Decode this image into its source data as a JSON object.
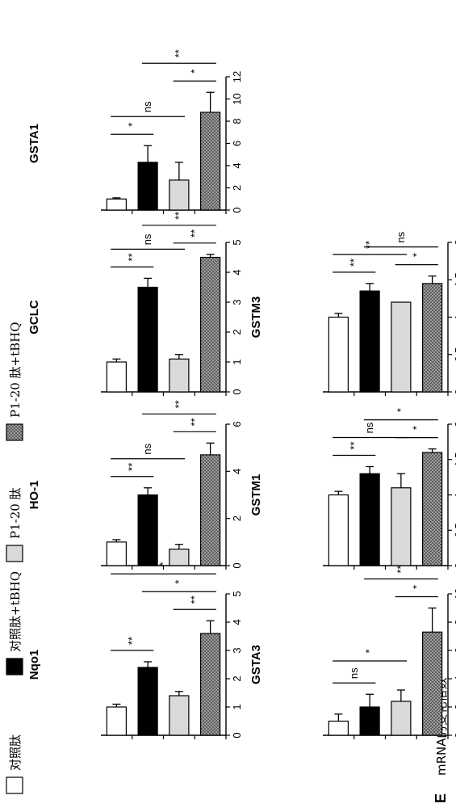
{
  "figure_label": "E",
  "y_axis_label": "mRNA的变化倍数",
  "legend": [
    {
      "label": "对照肽",
      "fill": "#ffffff"
    },
    {
      "label": "对照肽+tBHQ",
      "fill": "#000000"
    },
    {
      "label": "P1-20 肽",
      "fill": "#d9d9d9"
    },
    {
      "label": "P1-20 肽+tBHQ",
      "fill": "hatch"
    }
  ],
  "chart_data": [
    {
      "type": "bar",
      "title": "Nqo1",
      "ylim": [
        0,
        5
      ],
      "ticks": [
        "0",
        "1",
        "2",
        "3",
        "4",
        "5"
      ],
      "categories": [
        "对照肽",
        "对照肽+tBHQ",
        "P1-20 肽",
        "P1-20 肽+tBHQ"
      ],
      "values": [
        1.0,
        2.4,
        1.4,
        3.6
      ],
      "errors": [
        0.1,
        0.2,
        0.15,
        0.45
      ],
      "significance": [
        {
          "pair": [
            0,
            1
          ],
          "label": "**"
        },
        {
          "pair": [
            0,
            3
          ],
          "label": "*"
        },
        {
          "pair": [
            1,
            3
          ],
          "label": "*"
        },
        {
          "pair": [
            2,
            3
          ],
          "label": "**"
        }
      ]
    },
    {
      "type": "bar",
      "title": "HO-1",
      "ylim": [
        0,
        6
      ],
      "ticks": [
        "0",
        "2",
        "4",
        "6"
      ],
      "categories": [
        "对照肽",
        "对照肽+tBHQ",
        "P1-20 肽",
        "P1-20 肽+tBHQ"
      ],
      "values": [
        1.0,
        3.0,
        0.7,
        4.7
      ],
      "errors": [
        0.1,
        0.3,
        0.2,
        0.5
      ],
      "significance": [
        {
          "pair": [
            0,
            1
          ],
          "label": "**"
        },
        {
          "pair": [
            0,
            2
          ],
          "label": "ns"
        },
        {
          "pair": [
            1,
            3
          ],
          "label": "**"
        },
        {
          "pair": [
            2,
            3
          ],
          "label": "**"
        }
      ]
    },
    {
      "type": "bar",
      "title": "GCLC",
      "ylim": [
        0,
        5
      ],
      "ticks": [
        "0",
        "1",
        "2",
        "3",
        "4",
        "5"
      ],
      "categories": [
        "对照肽",
        "对照肽+tBHQ",
        "P1-20 肽",
        "P1-20 肽+tBHQ"
      ],
      "values": [
        1.0,
        3.5,
        1.1,
        4.5
      ],
      "errors": [
        0.1,
        0.3,
        0.15,
        0.1
      ],
      "significance": [
        {
          "pair": [
            0,
            1
          ],
          "label": "**"
        },
        {
          "pair": [
            0,
            2
          ],
          "label": "ns"
        },
        {
          "pair": [
            1,
            3
          ],
          "label": "**"
        },
        {
          "pair": [
            2,
            3
          ],
          "label": "**"
        }
      ]
    },
    {
      "type": "bar",
      "title": "GSTA1",
      "ylim": [
        0,
        12
      ],
      "ticks": [
        "0",
        "2",
        "4",
        "6",
        "8",
        "10",
        "12"
      ],
      "categories": [
        "对照肽",
        "对照肽+tBHQ",
        "P1-20 肽",
        "P1-20 肽+tBHQ"
      ],
      "values": [
        1.0,
        4.3,
        2.7,
        8.8
      ],
      "errors": [
        0.1,
        1.5,
        1.6,
        1.8
      ],
      "significance": [
        {
          "pair": [
            0,
            1
          ],
          "label": "*"
        },
        {
          "pair": [
            0,
            2
          ],
          "label": "ns"
        },
        {
          "pair": [
            1,
            3
          ],
          "label": "**"
        },
        {
          "pair": [
            2,
            3
          ],
          "label": "*"
        }
      ]
    },
    {
      "type": "bar",
      "title": "GSTA3",
      "ylim": [
        0,
        10
      ],
      "ticks": [
        "0",
        "2",
        "4",
        "6",
        "8",
        "10"
      ],
      "categories": [
        "对照肽",
        "对照肽+tBHQ",
        "P1-20 肽",
        "P1-20 肽+tBHQ"
      ],
      "values": [
        1.0,
        2.0,
        2.4,
        7.3
      ],
      "errors": [
        0.5,
        0.9,
        0.8,
        1.7
      ],
      "significance": [
        {
          "pair": [
            0,
            1
          ],
          "label": "ns"
        },
        {
          "pair": [
            0,
            2
          ],
          "label": "*"
        },
        {
          "pair": [
            1,
            3
          ],
          "label": "**"
        },
        {
          "pair": [
            2,
            3
          ],
          "label": "*"
        }
      ]
    },
    {
      "type": "bar",
      "title": "GSTM1",
      "ylim": [
        0,
        2
      ],
      "ticks": [
        "0",
        "0.5",
        "1",
        "1.5",
        "2"
      ],
      "categories": [
        "对照肽",
        "对照肽+tBHQ",
        "P1-20 肽",
        "P1-20 肽+tBHQ"
      ],
      "values": [
        1.0,
        1.3,
        1.1,
        1.6
      ],
      "errors": [
        0.05,
        0.1,
        0.2,
        0.05
      ],
      "significance": [
        {
          "pair": [
            0,
            1
          ],
          "label": "**"
        },
        {
          "pair": [
            0,
            2
          ],
          "label": "ns"
        },
        {
          "pair": [
            1,
            3
          ],
          "label": "*"
        },
        {
          "pair": [
            2,
            3
          ],
          "label": "*"
        }
      ]
    },
    {
      "type": "bar",
      "title": "GSTM3",
      "ylim": [
        0,
        2
      ],
      "ticks": [
        "0",
        "0.5",
        "1",
        "1.5",
        "2"
      ],
      "categories": [
        "对照肽",
        "对照肽+tBHQ",
        "P1-20 肽",
        "P1-20 肽+tBHQ"
      ],
      "values": [
        1.0,
        1.35,
        1.2,
        1.45
      ],
      "errors": [
        0.05,
        0.1,
        0.0,
        0.1
      ],
      "significance": [
        {
          "pair": [
            0,
            1
          ],
          "label": "**"
        },
        {
          "pair": [
            0,
            2
          ],
          "label": "**"
        },
        {
          "pair": [
            1,
            3
          ],
          "label": "ns"
        },
        {
          "pair": [
            2,
            3
          ],
          "label": "*"
        }
      ]
    }
  ]
}
